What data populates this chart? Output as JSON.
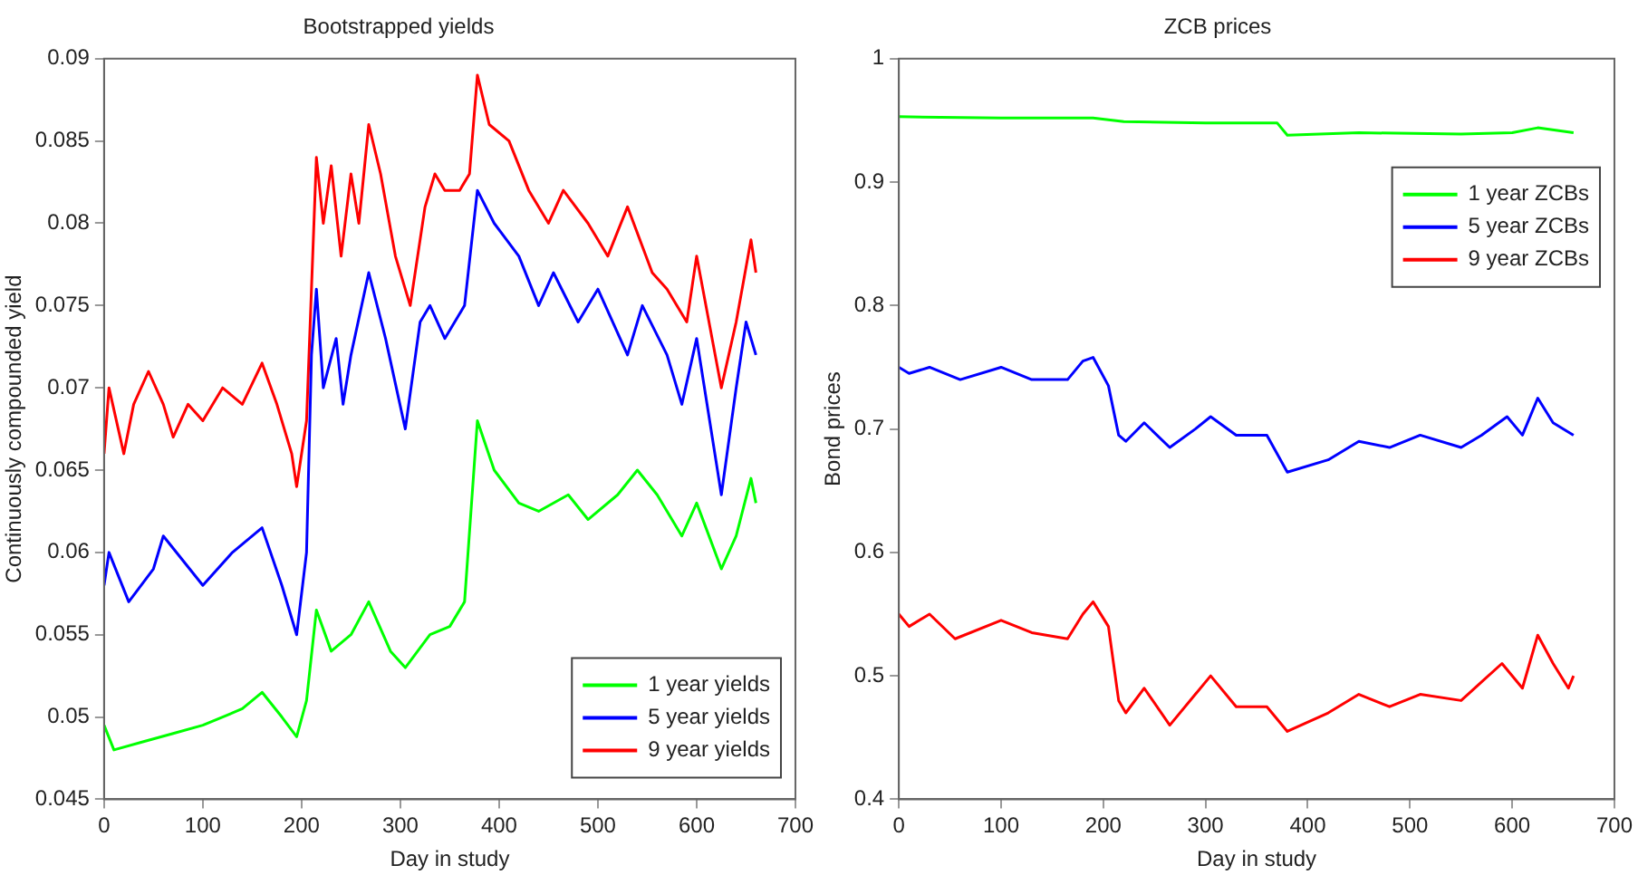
{
  "chart_data": [
    {
      "type": "line",
      "title": "Bootstrapped yields",
      "xlabel": "Day in study",
      "ylabel": "Continuously compounded yield",
      "xlim": [
        0,
        700
      ],
      "xticks": [
        0,
        100,
        200,
        300,
        400,
        500,
        600,
        700
      ],
      "ylim": [
        0.045,
        0.09
      ],
      "yticks": [
        0.045,
        0.05,
        0.055,
        0.06,
        0.065,
        0.07,
        0.075,
        0.08,
        0.085,
        0.09
      ],
      "grid": false,
      "legend": "bottom right",
      "marker": "none",
      "line_style": "solid",
      "series": [
        {
          "name": "1 year yields",
          "color": "#00ff00",
          "x": [
            0,
            10,
            40,
            70,
            100,
            140,
            160,
            180,
            195,
            205,
            215,
            230,
            250,
            268,
            290,
            305,
            330,
            350,
            365,
            378,
            395,
            420,
            440,
            470,
            490,
            520,
            540,
            560,
            585,
            600,
            625,
            640,
            655,
            660
          ],
          "values": [
            0.0495,
            0.048,
            0.0485,
            0.049,
            0.0495,
            0.0505,
            0.0515,
            0.05,
            0.0488,
            0.051,
            0.0565,
            0.054,
            0.055,
            0.057,
            0.054,
            0.053,
            0.055,
            0.0555,
            0.057,
            0.068,
            0.065,
            0.063,
            0.0625,
            0.0635,
            0.062,
            0.0635,
            0.065,
            0.0635,
            0.061,
            0.063,
            0.059,
            0.061,
            0.0645,
            0.063
          ]
        },
        {
          "name": "5 year yields",
          "color": "#0000ff",
          "x": [
            0,
            5,
            25,
            50,
            60,
            100,
            130,
            160,
            180,
            195,
            205,
            210,
            215,
            222,
            235,
            242,
            250,
            268,
            285,
            305,
            320,
            330,
            345,
            365,
            378,
            395,
            420,
            440,
            455,
            480,
            500,
            530,
            545,
            570,
            585,
            600,
            625,
            640,
            650,
            660
          ],
          "values": [
            0.058,
            0.06,
            0.057,
            0.059,
            0.061,
            0.058,
            0.06,
            0.0615,
            0.058,
            0.055,
            0.06,
            0.072,
            0.076,
            0.07,
            0.073,
            0.069,
            0.072,
            0.077,
            0.073,
            0.0675,
            0.074,
            0.075,
            0.073,
            0.075,
            0.082,
            0.08,
            0.078,
            0.075,
            0.077,
            0.074,
            0.076,
            0.072,
            0.075,
            0.072,
            0.069,
            0.073,
            0.0635,
            0.07,
            0.074,
            0.072
          ]
        },
        {
          "name": "9 year yields",
          "color": "#ff0000",
          "x": [
            0,
            5,
            20,
            30,
            45,
            60,
            70,
            85,
            100,
            120,
            140,
            160,
            175,
            190,
            195,
            205,
            210,
            215,
            222,
            230,
            240,
            250,
            258,
            268,
            280,
            295,
            310,
            325,
            335,
            345,
            360,
            370,
            378,
            390,
            410,
            430,
            450,
            465,
            490,
            510,
            530,
            555,
            570,
            590,
            600,
            625,
            640,
            655,
            660
          ],
          "values": [
            0.066,
            0.07,
            0.066,
            0.069,
            0.071,
            0.069,
            0.067,
            0.069,
            0.068,
            0.07,
            0.069,
            0.0715,
            0.069,
            0.066,
            0.064,
            0.068,
            0.076,
            0.084,
            0.08,
            0.0835,
            0.078,
            0.083,
            0.08,
            0.086,
            0.083,
            0.078,
            0.075,
            0.081,
            0.083,
            0.082,
            0.082,
            0.083,
            0.089,
            0.086,
            0.085,
            0.082,
            0.08,
            0.082,
            0.08,
            0.078,
            0.081,
            0.077,
            0.076,
            0.074,
            0.078,
            0.07,
            0.074,
            0.079,
            0.077
          ]
        }
      ]
    },
    {
      "type": "line",
      "title": "ZCB prices",
      "xlabel": "Day in study",
      "ylabel": "Bond prices",
      "xlim": [
        0,
        700
      ],
      "xticks": [
        0,
        100,
        200,
        300,
        400,
        500,
        600,
        700
      ],
      "ylim": [
        0.4,
        1
      ],
      "yticks": [
        0.4,
        0.5,
        0.6,
        0.7,
        0.8,
        0.9,
        1
      ],
      "grid": false,
      "legend": "top right",
      "marker": "none",
      "line_style": "solid",
      "series": [
        {
          "name": "1 year ZCBs",
          "color": "#00ff00",
          "x": [
            0,
            100,
            190,
            220,
            300,
            370,
            380,
            450,
            550,
            600,
            625,
            660
          ],
          "values": [
            0.953,
            0.952,
            0.952,
            0.949,
            0.948,
            0.948,
            0.938,
            0.94,
            0.939,
            0.94,
            0.944,
            0.94
          ]
        },
        {
          "name": "5 year ZCBs",
          "color": "#0000ff",
          "x": [
            0,
            10,
            30,
            60,
            100,
            130,
            165,
            180,
            190,
            205,
            215,
            222,
            240,
            265,
            290,
            305,
            330,
            360,
            380,
            420,
            450,
            480,
            510,
            550,
            570,
            595,
            610,
            625,
            640,
            660
          ],
          "values": [
            0.75,
            0.745,
            0.75,
            0.74,
            0.75,
            0.74,
            0.74,
            0.755,
            0.758,
            0.735,
            0.695,
            0.69,
            0.705,
            0.685,
            0.7,
            0.71,
            0.695,
            0.695,
            0.665,
            0.675,
            0.69,
            0.685,
            0.695,
            0.685,
            0.695,
            0.71,
            0.695,
            0.725,
            0.705,
            0.695
          ]
        },
        {
          "name": "9 year ZCBs",
          "color": "#ff0000",
          "x": [
            0,
            10,
            30,
            55,
            100,
            130,
            165,
            180,
            190,
            205,
            215,
            222,
            240,
            265,
            290,
            305,
            330,
            360,
            380,
            420,
            450,
            480,
            510,
            550,
            570,
            590,
            610,
            625,
            640,
            655,
            660
          ],
          "values": [
            0.55,
            0.54,
            0.55,
            0.53,
            0.545,
            0.535,
            0.53,
            0.55,
            0.56,
            0.54,
            0.48,
            0.47,
            0.49,
            0.46,
            0.485,
            0.5,
            0.475,
            0.475,
            0.455,
            0.47,
            0.485,
            0.475,
            0.485,
            0.48,
            0.495,
            0.51,
            0.49,
            0.533,
            0.51,
            0.49,
            0.5
          ]
        }
      ]
    }
  ]
}
